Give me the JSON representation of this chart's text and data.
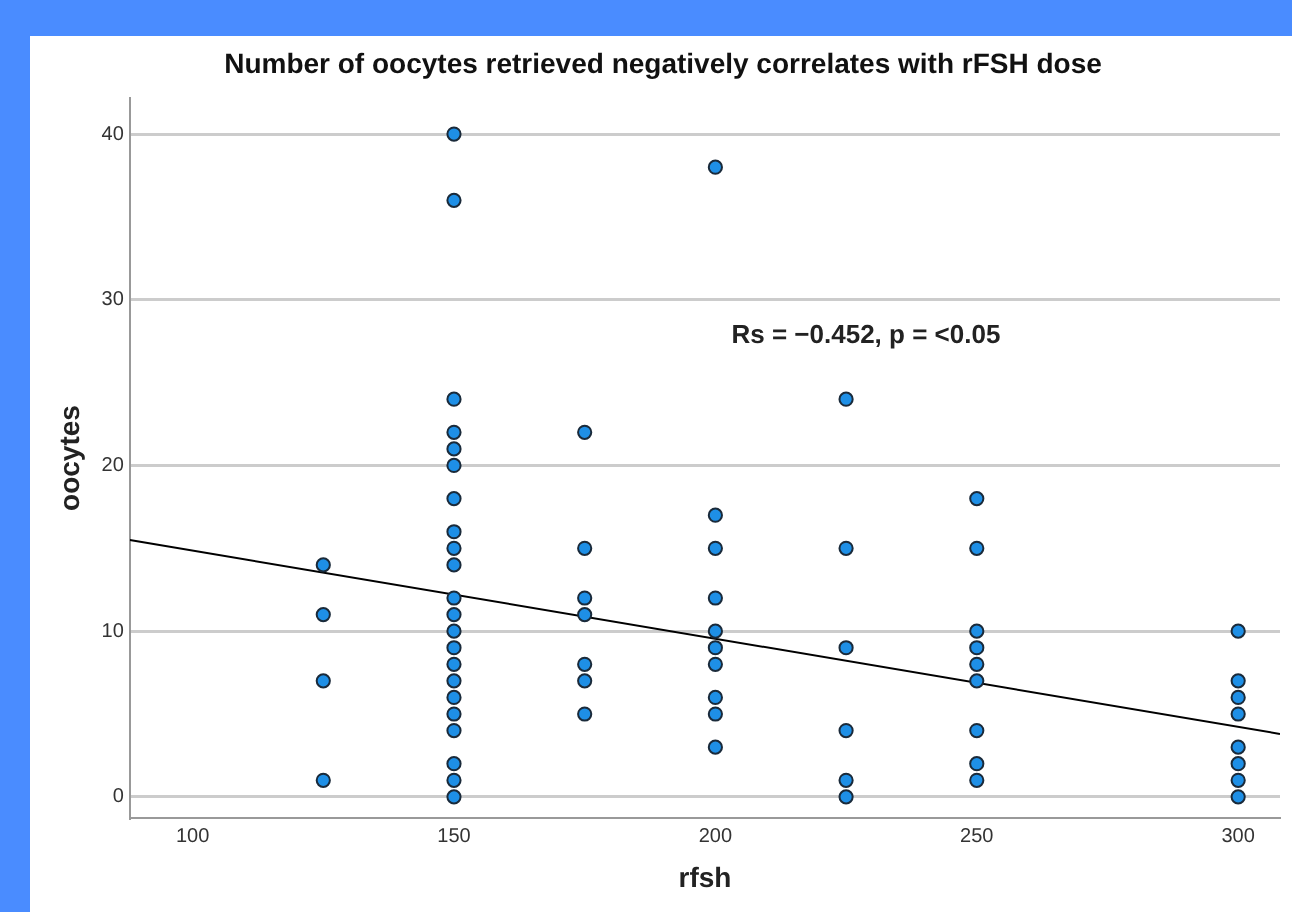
{
  "chart_data": {
    "type": "scatter",
    "title": "Number of oocytes retrieved negatively correlates with rFSH dose",
    "xlabel": "rfsh",
    "ylabel": "oocytes",
    "annotations": [
      "Rs = −0.452, p = <0.05"
    ],
    "xlim": [
      88,
      308
    ],
    "xticks": [
      100,
      150,
      200,
      250,
      300
    ],
    "ylim": [
      -1.3,
      42.2
    ],
    "yticks": [
      0,
      10,
      20,
      30,
      40
    ],
    "grid": "y",
    "legend": false,
    "marker": "circle",
    "series": [
      {
        "type": "scatter",
        "color": "#1e8fe6",
        "x": [
          125,
          125,
          125,
          125,
          150,
          150,
          150,
          150,
          150,
          150,
          150,
          150,
          150,
          150,
          150,
          150,
          150,
          150,
          150,
          150,
          150,
          150,
          150,
          150,
          150,
          150,
          175,
          175,
          175,
          175,
          175,
          175,
          175,
          200,
          200,
          200,
          200,
          200,
          200,
          200,
          200,
          200,
          200,
          225,
          225,
          225,
          225,
          225,
          225,
          250,
          250,
          250,
          250,
          250,
          250,
          250,
          250,
          250,
          300,
          300,
          300,
          300,
          300,
          300,
          300,
          300
        ],
        "values": [
          14,
          11,
          7,
          1,
          40,
          36,
          24,
          22,
          21,
          20,
          18,
          16,
          15,
          14,
          12,
          11,
          10,
          9,
          8,
          7,
          6,
          5,
          4,
          2,
          1,
          0,
          22,
          15,
          12,
          11,
          8,
          7,
          5,
          38,
          17,
          15,
          12,
          10,
          9,
          8,
          6,
          5,
          3,
          24,
          15,
          9,
          4,
          1,
          0,
          18,
          15,
          10,
          9,
          8,
          7,
          4,
          2,
          1,
          10,
          7,
          6,
          5,
          3,
          2,
          1,
          0
        ]
      },
      {
        "type": "line",
        "color": "#000000",
        "marker": "none",
        "x": [
          88,
          308
        ],
        "values": [
          15.5,
          3.8
        ]
      }
    ]
  }
}
